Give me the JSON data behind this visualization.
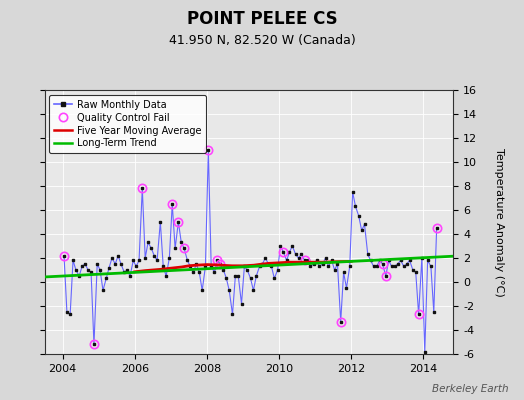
{
  "title": "POINT PELEE CS",
  "subtitle": "41.950 N, 82.520 W (Canada)",
  "ylabel": "Temperature Anomaly (°C)",
  "watermark": "Berkeley Earth",
  "bg_color": "#d8d8d8",
  "plot_bg_color": "#e8e8e8",
  "xlim": [
    2003.5,
    2014.83
  ],
  "ylim": [
    -6,
    16
  ],
  "yticks": [
    -6,
    -4,
    -2,
    0,
    2,
    4,
    6,
    8,
    10,
    12,
    14,
    16
  ],
  "xticks": [
    2004,
    2006,
    2008,
    2010,
    2012,
    2014
  ],
  "raw_x": [
    2004.04,
    2004.12,
    2004.21,
    2004.29,
    2004.37,
    2004.46,
    2004.54,
    2004.62,
    2004.71,
    2004.79,
    2004.87,
    2004.96,
    2005.04,
    2005.12,
    2005.21,
    2005.29,
    2005.37,
    2005.46,
    2005.54,
    2005.62,
    2005.71,
    2005.79,
    2005.87,
    2005.96,
    2006.04,
    2006.12,
    2006.21,
    2006.29,
    2006.37,
    2006.46,
    2006.54,
    2006.62,
    2006.71,
    2006.79,
    2006.87,
    2006.96,
    2007.04,
    2007.12,
    2007.21,
    2007.29,
    2007.37,
    2007.46,
    2007.54,
    2007.62,
    2007.71,
    2007.79,
    2007.87,
    2007.96,
    2008.04,
    2008.12,
    2008.21,
    2008.29,
    2008.37,
    2008.46,
    2008.54,
    2008.62,
    2008.71,
    2008.79,
    2008.87,
    2008.96,
    2009.04,
    2009.12,
    2009.21,
    2009.29,
    2009.37,
    2009.46,
    2009.54,
    2009.62,
    2009.71,
    2009.79,
    2009.87,
    2009.96,
    2010.04,
    2010.12,
    2010.21,
    2010.29,
    2010.37,
    2010.46,
    2010.54,
    2010.62,
    2010.71,
    2010.79,
    2010.87,
    2010.96,
    2011.04,
    2011.12,
    2011.21,
    2011.29,
    2011.37,
    2011.46,
    2011.54,
    2011.62,
    2011.71,
    2011.79,
    2011.87,
    2011.96,
    2012.04,
    2012.12,
    2012.21,
    2012.29,
    2012.37,
    2012.46,
    2012.54,
    2012.62,
    2012.71,
    2012.79,
    2012.87,
    2012.96,
    2013.04,
    2013.12,
    2013.21,
    2013.29,
    2013.37,
    2013.46,
    2013.54,
    2013.62,
    2013.71,
    2013.79,
    2013.87,
    2013.96,
    2014.04,
    2014.12,
    2014.21,
    2014.29,
    2014.37
  ],
  "raw_y": [
    2.2,
    -2.5,
    -2.7,
    1.8,
    1.0,
    0.5,
    1.3,
    1.5,
    1.0,
    0.8,
    -5.2,
    1.5,
    1.0,
    -0.7,
    0.3,
    1.2,
    2.0,
    1.5,
    2.2,
    1.5,
    0.8,
    1.0,
    0.5,
    1.8,
    1.3,
    1.8,
    7.8,
    2.0,
    3.3,
    2.8,
    2.2,
    1.8,
    5.0,
    1.3,
    0.5,
    2.0,
    6.5,
    2.8,
    5.0,
    3.3,
    2.8,
    1.8,
    1.3,
    0.8,
    1.5,
    0.8,
    -0.7,
    1.3,
    11.0,
    1.3,
    0.8,
    1.8,
    1.5,
    1.0,
    0.3,
    -0.7,
    -2.7,
    0.5,
    0.5,
    -1.8,
    1.3,
    1.0,
    0.3,
    -0.7,
    0.5,
    1.3,
    1.5,
    2.0,
    1.5,
    1.3,
    0.3,
    1.0,
    3.0,
    2.5,
    1.8,
    2.5,
    3.0,
    2.3,
    2.0,
    2.3,
    1.8,
    1.8,
    1.3,
    1.5,
    1.8,
    1.3,
    1.5,
    2.0,
    1.3,
    1.8,
    1.0,
    1.5,
    -3.3,
    0.8,
    -0.5,
    1.3,
    7.5,
    6.3,
    5.5,
    4.3,
    4.8,
    2.3,
    1.8,
    1.3,
    1.3,
    1.8,
    1.5,
    0.5,
    1.8,
    1.3,
    1.3,
    1.5,
    1.8,
    1.3,
    1.5,
    1.8,
    1.0,
    0.8,
    -2.7,
    2.0,
    -5.8,
    1.8,
    1.3,
    -2.5,
    4.5
  ],
  "qc_fail_x": [
    2004.04,
    2004.87,
    2006.21,
    2007.04,
    2007.21,
    2007.37,
    2008.04,
    2008.29,
    2008.37,
    2010.12,
    2010.71,
    2011.71,
    2012.87,
    2012.96,
    2013.87,
    2014.37
  ],
  "qc_fail_y": [
    2.2,
    -5.2,
    7.8,
    6.5,
    5.0,
    2.8,
    11.0,
    1.8,
    1.5,
    2.5,
    1.8,
    -3.3,
    1.5,
    0.5,
    -2.7,
    4.5
  ],
  "ma_x": [
    2006.0,
    2006.3,
    2006.7,
    2007.0,
    2007.3,
    2007.5,
    2007.7,
    2008.0,
    2008.3,
    2008.5,
    2008.7,
    2009.0,
    2009.3,
    2009.5,
    2009.7,
    2010.0,
    2010.3,
    2010.5,
    2010.7,
    2011.0,
    2011.2,
    2011.5,
    2011.7,
    2012.0
  ],
  "ma_y": [
    0.85,
    0.95,
    1.05,
    1.15,
    1.25,
    1.35,
    1.4,
    1.45,
    1.42,
    1.38,
    1.35,
    1.35,
    1.4,
    1.48,
    1.55,
    1.6,
    1.65,
    1.65,
    1.65,
    1.65,
    1.65,
    1.68,
    1.7,
    1.72
  ],
  "trend_x": [
    2003.5,
    2014.83
  ],
  "trend_y": [
    0.42,
    2.15
  ],
  "raw_line_color": "#6666ff",
  "raw_dot_color": "#111111",
  "qc_color": "#ff44ff",
  "ma_color": "#dd0000",
  "trend_color": "#00bb00",
  "grid_color": "#ffffff",
  "spine_color": "#333333",
  "title_fontsize": 12,
  "subtitle_fontsize": 9,
  "tick_fontsize": 8,
  "legend_fontsize": 7,
  "ylabel_fontsize": 8
}
